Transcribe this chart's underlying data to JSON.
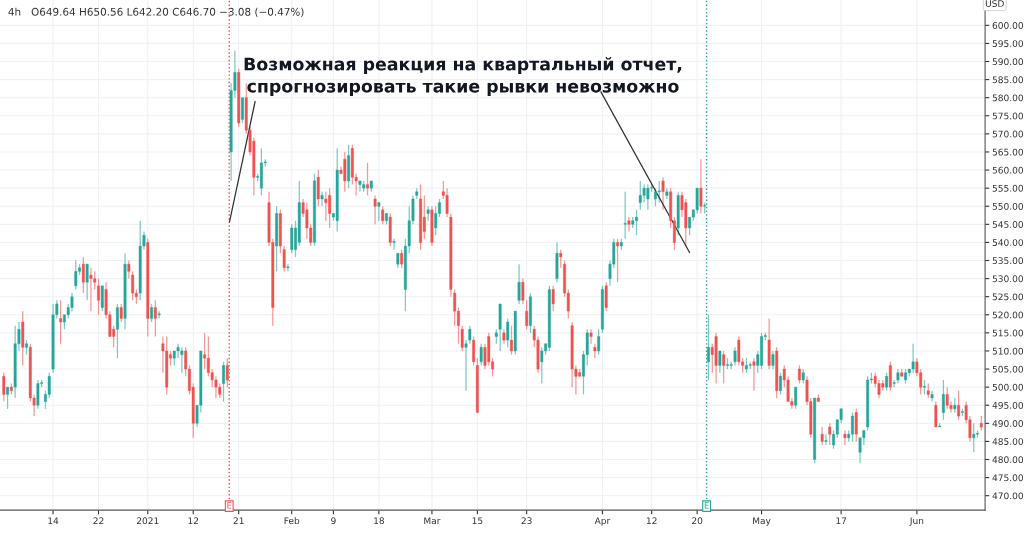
{
  "chart_data": {
    "type": "candlestick",
    "subtitle": "4h   O649.64 H650.56 L642.20 C646.70 −3.08 (−0.47%)",
    "ylabel": "USD",
    "annotations": [
      "Возможная реакция на квартальный отчет,\nспрогнозировать такие рывки невозможно",
      "E",
      "E"
    ],
    "ylim": [
      466,
      607
    ],
    "yticks": [
      {
        "value": 470,
        "label": "470.00"
      },
      {
        "value": 475,
        "label": "475.00"
      },
      {
        "value": 480,
        "label": "480.00"
      },
      {
        "value": 485,
        "label": "485.00"
      },
      {
        "value": 490,
        "label": "490.00"
      },
      {
        "value": 495,
        "label": "495.00"
      },
      {
        "value": 500,
        "label": "500.00"
      },
      {
        "value": 505,
        "label": "505.00"
      },
      {
        "value": 510,
        "label": "510.00"
      },
      {
        "value": 515,
        "label": "515.00"
      },
      {
        "value": 520,
        "label": "520.00"
      },
      {
        "value": 525,
        "label": "525.00"
      },
      {
        "value": 530,
        "label": "530.00"
      },
      {
        "value": 535,
        "label": "535.00"
      },
      {
        "value": 540,
        "label": "540.00"
      },
      {
        "value": 545,
        "label": "545.00"
      },
      {
        "value": 550,
        "label": "550.00"
      },
      {
        "value": 555,
        "label": "555.00"
      },
      {
        "value": 560,
        "label": "560.00"
      },
      {
        "value": 565,
        "label": "565.00"
      },
      {
        "value": 570,
        "label": "570.00"
      },
      {
        "value": 575,
        "label": "575.00"
      },
      {
        "value": 580,
        "label": "580.00"
      },
      {
        "value": 585,
        "label": "585.00"
      },
      {
        "value": 590,
        "label": "590.00"
      },
      {
        "value": 595,
        "label": "595.00"
      },
      {
        "value": 600,
        "label": "600.00"
      }
    ],
    "grid": true,
    "categories": [
      null,
      null,
      null,
      null,
      null,
      null,
      null,
      null,
      null,
      null,
      null,
      null,
      null,
      "14",
      null,
      null,
      null,
      null,
      null,
      null,
      null,
      null,
      null,
      null,
      null,
      "22",
      null,
      null,
      null,
      null,
      null,
      null,
      null,
      null,
      null,
      null,
      null,
      null,
      "2021",
      null,
      null,
      null,
      null,
      null,
      null,
      null,
      null,
      null,
      null,
      null,
      "12",
      null,
      null,
      null,
      null,
      null,
      null,
      null,
      null,
      null,
      null,
      null,
      "21",
      null,
      null,
      null,
      null,
      null,
      null,
      null,
      null,
      null,
      null,
      null,
      null,
      null,
      "Feb",
      null,
      null,
      null,
      null,
      null,
      null,
      null,
      null,
      null,
      null,
      "9",
      null,
      null,
      null,
      null,
      null,
      null,
      null,
      null,
      null,
      null,
      null,
      "18",
      null,
      null,
      null,
      null,
      null,
      null,
      null,
      null,
      null,
      null,
      null,
      null,
      null,
      "Mar",
      null,
      null,
      null,
      null,
      null,
      null,
      null,
      null,
      null,
      null,
      null,
      "15",
      null,
      null,
      null,
      null,
      null,
      null,
      null,
      null,
      null,
      null,
      null,
      null,
      "23",
      null,
      null,
      null,
      null,
      null,
      null,
      null,
      null,
      null,
      null,
      null,
      null,
      null,
      null,
      null,
      null,
      null,
      null,
      null,
      "Apr",
      null,
      null,
      null,
      null,
      null,
      null,
      null,
      null,
      null,
      null,
      null,
      null,
      "12",
      null,
      null,
      null,
      null,
      null,
      null,
      null,
      null,
      null,
      null,
      null,
      "20",
      null,
      null,
      null,
      null,
      null,
      null,
      null,
      null,
      null,
      null,
      null,
      null,
      null,
      null,
      null,
      null,
      "May",
      null,
      null,
      null,
      null,
      null,
      null,
      null,
      null,
      null,
      null,
      null,
      null,
      null,
      null,
      null,
      null,
      null,
      null,
      null,
      null,
      "17",
      null,
      null,
      null,
      null,
      null,
      null,
      null,
      null,
      null,
      null,
      null,
      null,
      null,
      null,
      null,
      null,
      null,
      null,
      null,
      "Jun",
      null,
      null,
      null,
      null,
      null,
      null,
      null,
      null,
      null,
      null,
      null,
      null,
      null,
      null,
      null,
      null,
      null
    ],
    "ohlc": [
      [
        503,
        504,
        496,
        498
      ],
      [
        498,
        500,
        494,
        500
      ],
      [
        500,
        501,
        498,
        499
      ],
      [
        500,
        517,
        497,
        512
      ],
      [
        512,
        518,
        510,
        516
      ],
      [
        518,
        521,
        506,
        511
      ],
      [
        511,
        513,
        509,
        512
      ],
      [
        511,
        512,
        496,
        497
      ],
      [
        497,
        498,
        492,
        495
      ],
      [
        495,
        502,
        494,
        501
      ],
      [
        501,
        502,
        500,
        501
      ],
      [
        496,
        499,
        494,
        498
      ],
      [
        498,
        504,
        497,
        503
      ],
      [
        505,
        523,
        504,
        520
      ],
      [
        520,
        524,
        519,
        523
      ],
      [
        519,
        524,
        512,
        518
      ],
      [
        518,
        520,
        516,
        520
      ],
      [
        520,
        523,
        519,
        522
      ],
      [
        522,
        526,
        521,
        525
      ],
      [
        528,
        535,
        527,
        532
      ],
      [
        532,
        534,
        531,
        533
      ],
      [
        534,
        536,
        526,
        529
      ],
      [
        529,
        534,
        524,
        534
      ],
      [
        531,
        533,
        521,
        530
      ],
      [
        530,
        532,
        527,
        529
      ],
      [
        528,
        530,
        520,
        524
      ],
      [
        522,
        528,
        521,
        528
      ],
      [
        527,
        529,
        519,
        520
      ],
      [
        520,
        521,
        514,
        514
      ],
      [
        516,
        517,
        511,
        514
      ],
      [
        516,
        523,
        508,
        522
      ],
      [
        522,
        523,
        518,
        519
      ],
      [
        519,
        537,
        516,
        534
      ],
      [
        534,
        535,
        530,
        532
      ],
      [
        531,
        532,
        524,
        526
      ],
      [
        526,
        527,
        523,
        525
      ],
      [
        526,
        546,
        524,
        539
      ],
      [
        539,
        543,
        538,
        542
      ],
      [
        540,
        541,
        514,
        519
      ],
      [
        519,
        523,
        518,
        522
      ],
      [
        522,
        524,
        514,
        519
      ],
      [
        520,
        521,
        519,
        520
      ],
      [
        512,
        514,
        504,
        510
      ],
      [
        510,
        514,
        498,
        500
      ],
      [
        509,
        510,
        506,
        508
      ],
      [
        508,
        510,
        506,
        510
      ],
      [
        510,
        512,
        508,
        511
      ],
      [
        509,
        511,
        504,
        510
      ],
      [
        510,
        511,
        503,
        505
      ],
      [
        505,
        506,
        498,
        499
      ],
      [
        500,
        501,
        486,
        490
      ],
      [
        490,
        495,
        489,
        495
      ],
      [
        495,
        510,
        493,
        510
      ],
      [
        509,
        515,
        505,
        508
      ],
      [
        508,
        514,
        503,
        504
      ],
      [
        504,
        505,
        500,
        502
      ],
      [
        502,
        503,
        497,
        500
      ],
      [
        500,
        501,
        497,
        498
      ],
      [
        501,
        507,
        496,
        506
      ],
      [
        506,
        508,
        500,
        502
      ],
      [
        565,
        584,
        557,
        582
      ],
      [
        582,
        593,
        580,
        587
      ],
      [
        587,
        588,
        572,
        573
      ],
      [
        574,
        580,
        573,
        580
      ],
      [
        580,
        584,
        570,
        571
      ],
      [
        571,
        572,
        564,
        565
      ],
      [
        568,
        569,
        553,
        558
      ],
      [
        558,
        559,
        557,
        558
      ],
      [
        555,
        566,
        553,
        562
      ],
      [
        562,
        563,
        561,
        562
      ],
      [
        551,
        554,
        539,
        540
      ],
      [
        540,
        541,
        517,
        522
      ],
      [
        539,
        550,
        532,
        548
      ],
      [
        548,
        549,
        537,
        539
      ],
      [
        538,
        539,
        532,
        533
      ],
      [
        533,
        534,
        532,
        533
      ],
      [
        538,
        545,
        537,
        544
      ],
      [
        538,
        546,
        536,
        544
      ],
      [
        540,
        557,
        539,
        551
      ],
      [
        551,
        552,
        547,
        548
      ],
      [
        549,
        551,
        541,
        544
      ],
      [
        544,
        545,
        539,
        540
      ],
      [
        540,
        559,
        539,
        557
      ],
      [
        558,
        560,
        550,
        552
      ],
      [
        552,
        554,
        550,
        553
      ],
      [
        552,
        554,
        546,
        551
      ],
      [
        553,
        555,
        544,
        548
      ],
      [
        547,
        548,
        546,
        548
      ],
      [
        546,
        566,
        543,
        560
      ],
      [
        560,
        561,
        559,
        559
      ],
      [
        563,
        565,
        554,
        557
      ],
      [
        557,
        567,
        555,
        564
      ],
      [
        566,
        567,
        556,
        558
      ],
      [
        558,
        559,
        553,
        557
      ],
      [
        556,
        557,
        554,
        557
      ],
      [
        555,
        557,
        554,
        556
      ],
      [
        556,
        562,
        553,
        555
      ],
      [
        555,
        557,
        554,
        557
      ],
      [
        552,
        553,
        545,
        550
      ],
      [
        550,
        551,
        546,
        551
      ],
      [
        549,
        550,
        545,
        546
      ],
      [
        546,
        548,
        545,
        548
      ],
      [
        547,
        548,
        539,
        540
      ],
      [
        540,
        541,
        538,
        540
      ],
      [
        534,
        537,
        533,
        537
      ],
      [
        537,
        538,
        533,
        534
      ],
      [
        527,
        541,
        521,
        539
      ],
      [
        539,
        550,
        537,
        546
      ],
      [
        546,
        553,
        545,
        552
      ],
      [
        553,
        555,
        552,
        554
      ],
      [
        552,
        556,
        538,
        540
      ],
      [
        547,
        553,
        541,
        543
      ],
      [
        548,
        550,
        546,
        549
      ],
      [
        549,
        550,
        539,
        540
      ],
      [
        544,
        550,
        542,
        548
      ],
      [
        548,
        552,
        547,
        551
      ],
      [
        554,
        557,
        552,
        553
      ],
      [
        553,
        555,
        547,
        548
      ],
      [
        547,
        548,
        525,
        527
      ],
      [
        526,
        527,
        517,
        521
      ],
      [
        521,
        522,
        512,
        517
      ],
      [
        516,
        517,
        510,
        511
      ],
      [
        511,
        513,
        499,
        512
      ],
      [
        513,
        517,
        512,
        516
      ],
      [
        513,
        514,
        506,
        507
      ],
      [
        506,
        508,
        493,
        493
      ],
      [
        507,
        512,
        506,
        511
      ],
      [
        511,
        512,
        505,
        506
      ],
      [
        514,
        515,
        506,
        507
      ],
      [
        507,
        508,
        503,
        505
      ],
      [
        514,
        516,
        512,
        515
      ],
      [
        516,
        523,
        510,
        523
      ],
      [
        515,
        516,
        512,
        513
      ],
      [
        513,
        519,
        511,
        518
      ],
      [
        513,
        517,
        509,
        510
      ],
      [
        510,
        521,
        509,
        521
      ],
      [
        524,
        534,
        523,
        529
      ],
      [
        529,
        530,
        523,
        524
      ],
      [
        521,
        524,
        516,
        517
      ],
      [
        517,
        526,
        515,
        525
      ],
      [
        516,
        517,
        511,
        513
      ],
      [
        513,
        514,
        504,
        505
      ],
      [
        507,
        511,
        501,
        510
      ],
      [
        510,
        512,
        509,
        512
      ],
      [
        511,
        528,
        510,
        527
      ],
      [
        527,
        528,
        521,
        523
      ],
      [
        530,
        540,
        529,
        537
      ],
      [
        537,
        538,
        533,
        536
      ],
      [
        534,
        535,
        525,
        526
      ],
      [
        526,
        527,
        519,
        521
      ],
      [
        517,
        518,
        500,
        505
      ],
      [
        505,
        506,
        498,
        503
      ],
      [
        504,
        505,
        503,
        503
      ],
      [
        503,
        510,
        498,
        509
      ],
      [
        509,
        516,
        506,
        515
      ],
      [
        515,
        516,
        512,
        514
      ],
      [
        511,
        512,
        508,
        510
      ],
      [
        510,
        516,
        509,
        514
      ],
      [
        516,
        528,
        515,
        527
      ],
      [
        528,
        529,
        521,
        522
      ],
      [
        530,
        535,
        528,
        534
      ],
      [
        534,
        541,
        533,
        540
      ],
      [
        540,
        541,
        529,
        539
      ],
      [
        539,
        541,
        538,
        540
      ],
      [
        545,
        554,
        541,
        545
      ],
      [
        546,
        547,
        543,
        545
      ],
      [
        545,
        547,
        544,
        546
      ],
      [
        546,
        549,
        542,
        547
      ],
      [
        551,
        557,
        549,
        553
      ],
      [
        553,
        556,
        551,
        555
      ],
      [
        552,
        556,
        549,
        555
      ],
      [
        555,
        556,
        554,
        555
      ],
      [
        552,
        555,
        550,
        554
      ],
      [
        554,
        557,
        551,
        554
      ],
      [
        557,
        558,
        549,
        554
      ],
      [
        553,
        555,
        552,
        554
      ],
      [
        554,
        555,
        544,
        546
      ],
      [
        546,
        547,
        538,
        540
      ],
      [
        544,
        554,
        542,
        553
      ],
      [
        553,
        554,
        547,
        549
      ],
      [
        551,
        552,
        539,
        544
      ],
      [
        544,
        547,
        542,
        547
      ],
      [
        547,
        549,
        546,
        549
      ],
      [
        549,
        555,
        548,
        555
      ],
      [
        555,
        563,
        548,
        550
      ],
      [
        550,
        551,
        548,
        550
      ],
      [
        507,
        520,
        502,
        511
      ],
      [
        511,
        512,
        504,
        509
      ],
      [
        514,
        515,
        501,
        506
      ],
      [
        506,
        510,
        504,
        510
      ],
      [
        509,
        510,
        501,
        506
      ],
      [
        506,
        508,
        505,
        506
      ],
      [
        506,
        507,
        505,
        506
      ],
      [
        507,
        511,
        506,
        510
      ],
      [
        513,
        514,
        506,
        507
      ],
      [
        507,
        508,
        504,
        506
      ],
      [
        505,
        508,
        504,
        506
      ],
      [
        506,
        507,
        505,
        506
      ],
      [
        507,
        508,
        499,
        506
      ],
      [
        506,
        510,
        504,
        509
      ],
      [
        506,
        515,
        505,
        514
      ],
      [
        514,
        515,
        513,
        514
      ],
      [
        513,
        519,
        505,
        506
      ],
      [
        506,
        510,
        505,
        509
      ],
      [
        510,
        511,
        497,
        499
      ],
      [
        499,
        504,
        498,
        503
      ],
      [
        505,
        506,
        500,
        502
      ],
      [
        502,
        503,
        496,
        496
      ],
      [
        496,
        497,
        494,
        495
      ],
      [
        495,
        500,
        494,
        500
      ],
      [
        505,
        506,
        501,
        502
      ],
      [
        502,
        505,
        501,
        504
      ],
      [
        502,
        503,
        495,
        496
      ],
      [
        496,
        497,
        486,
        487
      ],
      [
        480,
        497,
        479,
        497
      ],
      [
        497,
        498,
        496,
        496
      ],
      [
        487,
        489,
        484,
        485
      ],
      [
        485,
        487,
        484,
        485
      ],
      [
        489,
        490,
        484,
        487
      ],
      [
        484,
        488,
        483,
        487
      ],
      [
        487,
        491,
        486,
        491
      ],
      [
        491,
        494,
        490,
        494
      ],
      [
        487,
        488,
        484,
        486
      ],
      [
        486,
        488,
        485,
        487
      ],
      [
        487,
        493,
        485,
        492
      ],
      [
        493,
        494,
        485,
        487
      ],
      [
        482,
        486,
        479,
        486
      ],
      [
        486,
        488,
        484,
        488
      ],
      [
        489,
        503,
        488,
        502
      ],
      [
        502,
        504,
        501,
        502
      ],
      [
        503,
        504,
        500,
        501
      ],
      [
        501,
        502,
        497,
        498
      ],
      [
        501,
        502,
        499,
        500
      ],
      [
        500,
        504,
        499,
        503
      ],
      [
        506,
        507,
        499,
        500
      ],
      [
        501,
        502,
        500,
        501
      ],
      [
        502,
        505,
        501,
        504
      ],
      [
        504,
        505,
        503,
        503
      ],
      [
        502,
        505,
        501,
        504
      ],
      [
        504,
        505,
        503,
        505
      ],
      [
        505,
        512,
        504,
        507
      ],
      [
        507,
        508,
        503,
        504
      ],
      [
        504,
        505,
        498,
        500
      ],
      [
        500,
        502,
        498,
        500
      ],
      [
        499,
        501,
        497,
        498
      ],
      [
        497,
        499,
        496,
        498
      ],
      [
        495,
        496,
        489,
        489
      ],
      [
        489,
        490,
        489,
        489
      ],
      [
        493,
        502,
        491,
        498
      ],
      [
        498,
        500,
        494,
        495
      ],
      [
        495,
        496,
        493,
        494
      ],
      [
        494,
        497,
        493,
        495
      ],
      [
        495,
        499,
        491,
        492
      ],
      [
        493,
        494,
        492,
        493
      ],
      [
        495,
        496,
        490,
        491
      ],
      [
        491,
        492,
        485,
        486
      ],
      [
        486,
        490,
        482,
        487
      ],
      [
        487,
        488,
        486,
        487
      ],
      [
        490,
        492,
        488,
        489
      ]
    ]
  }
}
